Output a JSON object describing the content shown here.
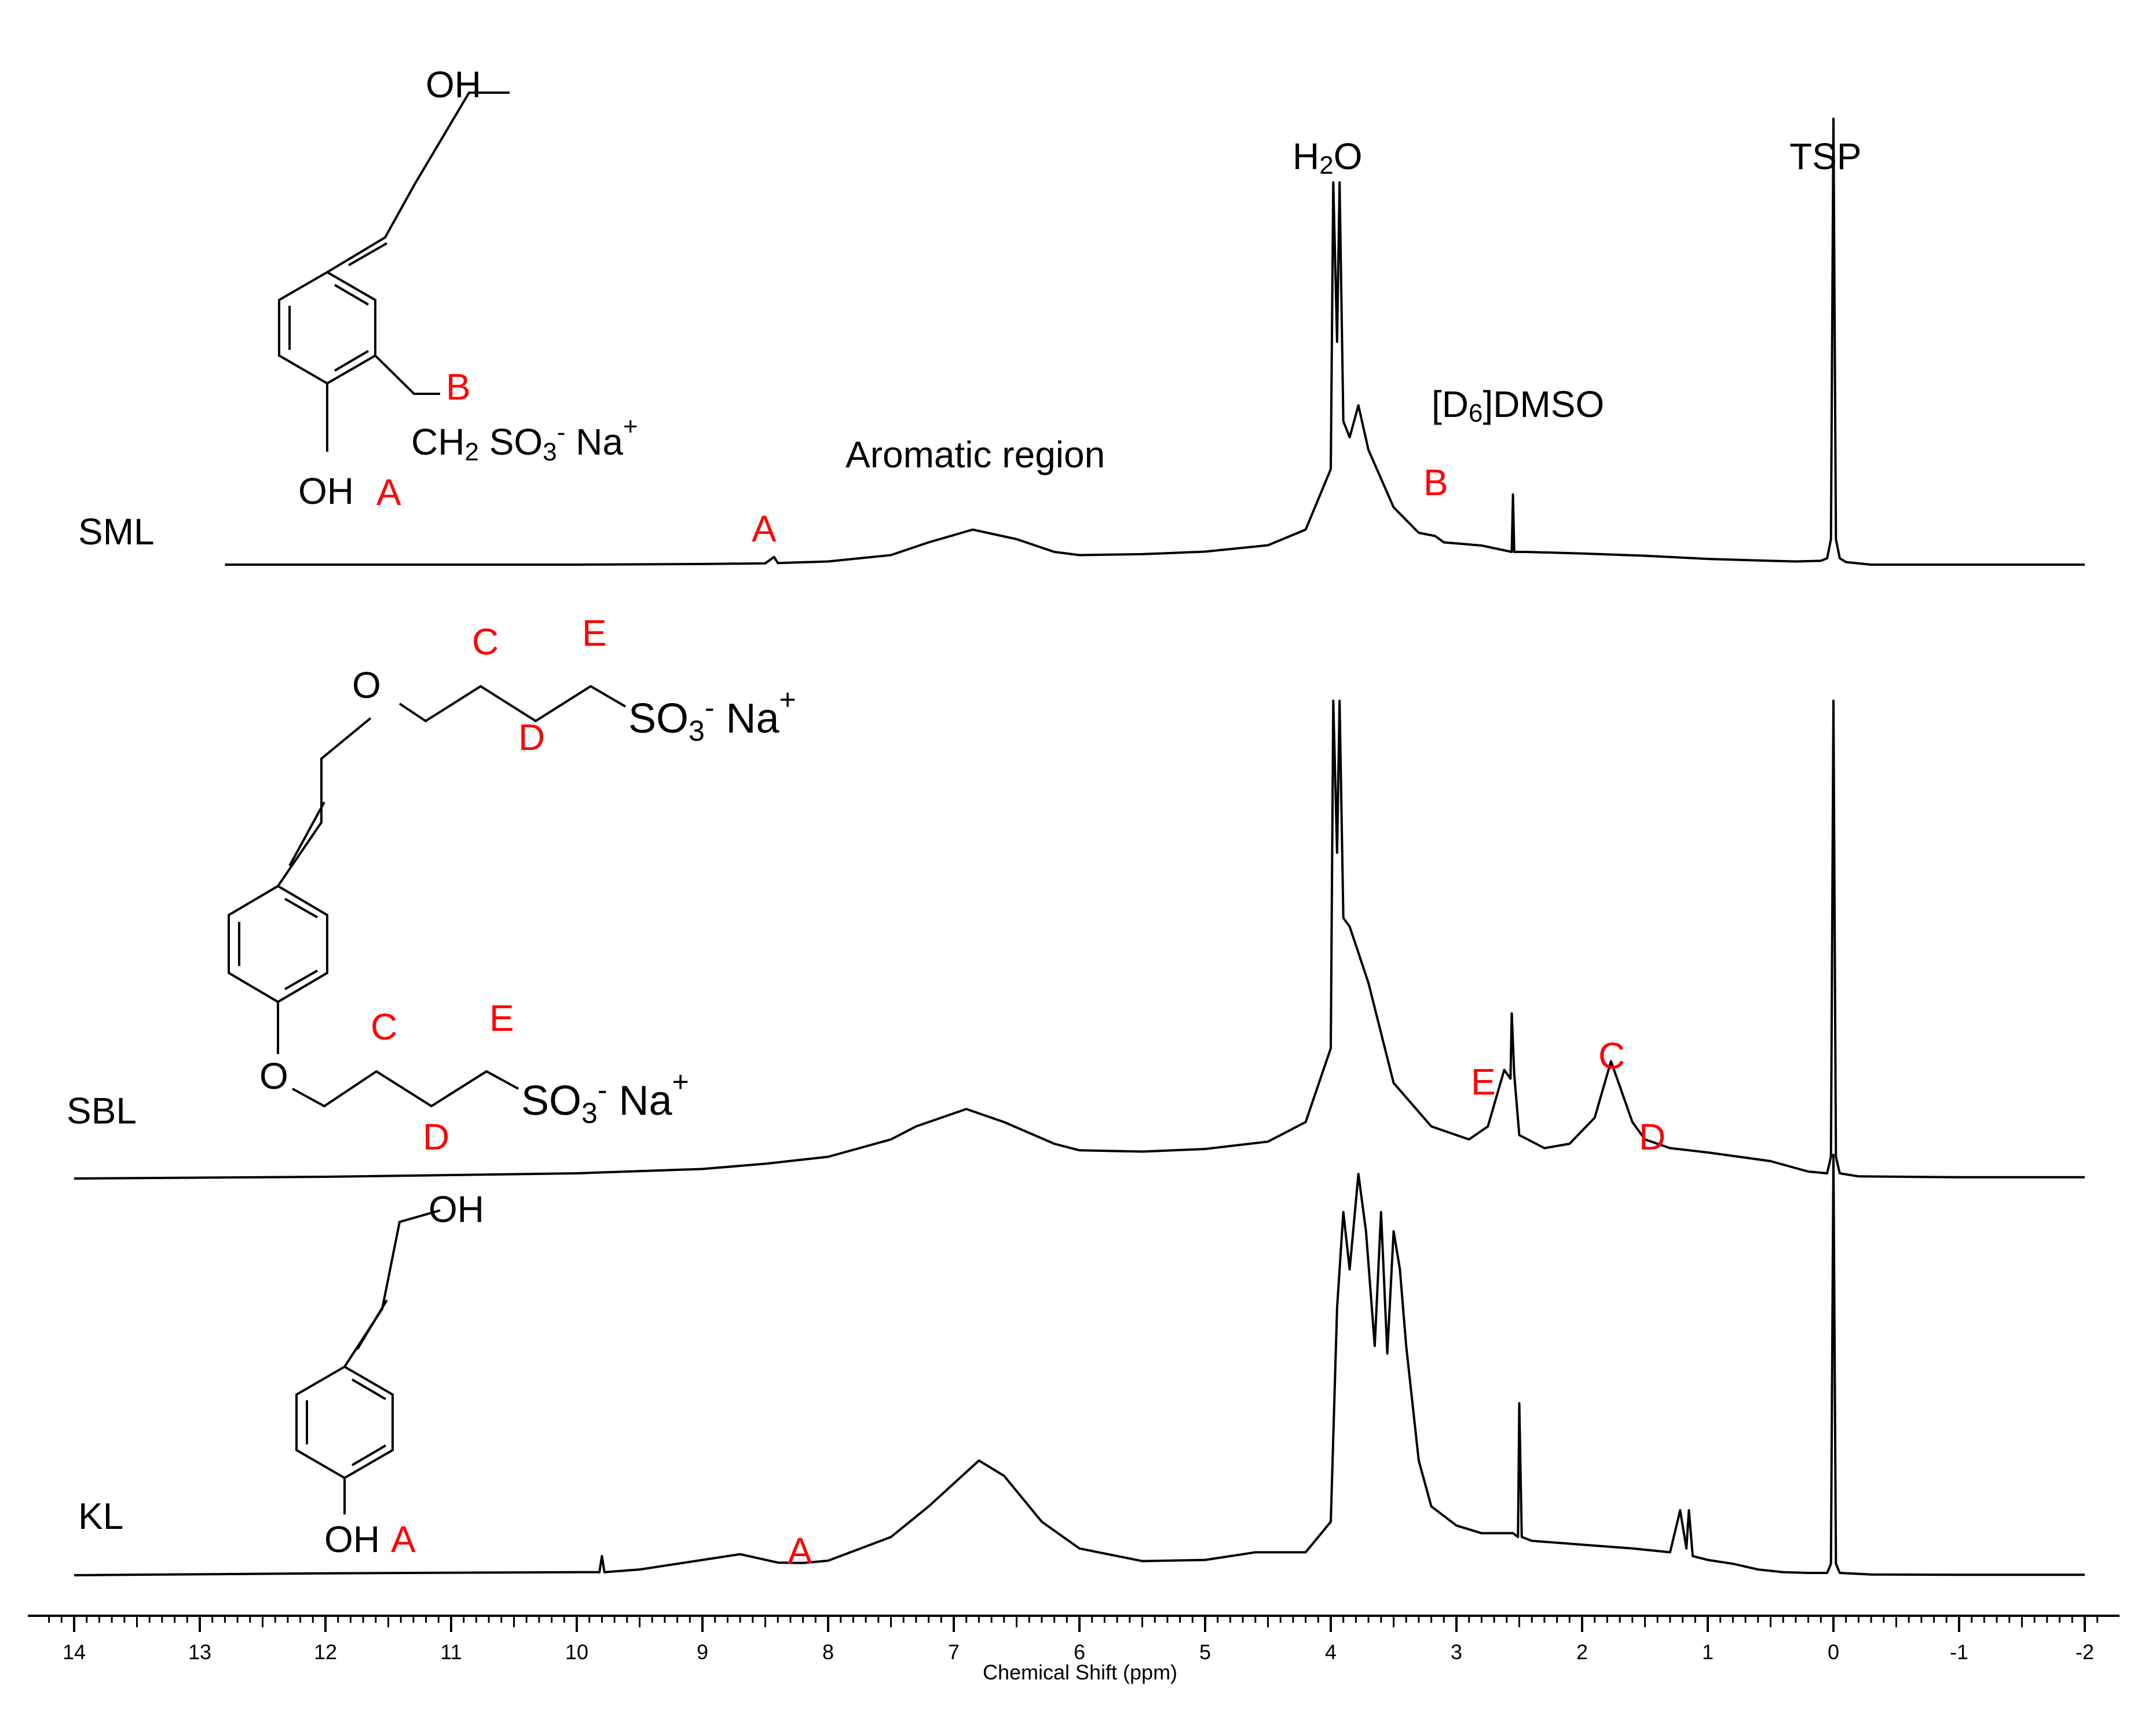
{
  "chart_data": {
    "type": "line",
    "xlabel": "Chemical Shift (ppm)",
    "xlim": [
      14,
      -2
    ],
    "x_ticks": [
      "14",
      "13",
      "12",
      "11",
      "10",
      "9",
      "8",
      "7",
      "6",
      "5",
      "4",
      "3",
      "2",
      "1",
      "0",
      "-1",
      "-2"
    ],
    "series": [
      {
        "name": "SML",
        "x": [
          12.8,
          10,
          9,
          8.5,
          8.43,
          8.4,
          8,
          7.5,
          7.2,
          6.85,
          6.5,
          6.2,
          6,
          5.5,
          5,
          4.5,
          4.2,
          4.0,
          3.98,
          3.95,
          3.93,
          3.9,
          3.85,
          3.78,
          3.7,
          3.5,
          3.3,
          3.17,
          3.1,
          2.8,
          2.56,
          2.55,
          2.54,
          2.45,
          2.0,
          1.5,
          1.0,
          0.5,
          0.3,
          0.1,
          0.05,
          0.02,
          0.0,
          -0.02,
          -0.05,
          -0.1,
          -0.3,
          -1.0,
          -2.0
        ],
        "y": [
          0,
          0,
          0.2,
          0.4,
          2.4,
          0.5,
          1,
          3,
          7,
          11,
          8,
          4,
          3,
          3.3,
          4.1,
          6.1,
          11,
          30,
          120,
          70,
          120,
          45,
          40,
          50,
          36,
          18,
          10,
          9,
          7,
          6,
          4,
          22,
          4,
          4,
          3.5,
          2.8,
          1.8,
          1.2,
          1,
          1.2,
          2,
          8,
          140,
          8,
          2,
          0.8,
          0,
          0,
          0
        ]
      },
      {
        "name": "SBL",
        "x": [
          14,
          12,
          10,
          9,
          8.5,
          8,
          7.5,
          7.3,
          6.9,
          6.6,
          6.2,
          6,
          5.5,
          5,
          4.5,
          4.2,
          4.0,
          3.98,
          3.95,
          3.93,
          3.9,
          3.85,
          3.78,
          3.7,
          3.5,
          3.2,
          2.9,
          2.75,
          2.62,
          2.57,
          2.56,
          2.54,
          2.5,
          2.3,
          2.1,
          1.9,
          1.77,
          1.6,
          1.5,
          1.3,
          1.0,
          0.5,
          0.2,
          0.05,
          0.02,
          0.0,
          -0.02,
          -0.05,
          -0.2,
          -1.0,
          -2.0
        ],
        "y": [
          0,
          0.4,
          1.2,
          2.2,
          3.4,
          5,
          9,
          12,
          16,
          13,
          8,
          6.5,
          6.2,
          6.8,
          8.5,
          13,
          30,
          110,
          75,
          110,
          60,
          58,
          52,
          45,
          22,
          12,
          9,
          12,
          25,
          23,
          38,
          24,
          10,
          7,
          8,
          14,
          27,
          13,
          9,
          7,
          6,
          4,
          1.6,
          1.2,
          5,
          110,
          5,
          1.2,
          0.5,
          0.3,
          0.3
        ]
      },
      {
        "name": "KL",
        "x": [
          14,
          12,
          10,
          9.82,
          9.8,
          9.78,
          9.5,
          9,
          8.7,
          8.4,
          8.2,
          8,
          7.5,
          7.2,
          7.0,
          6.9,
          6.8,
          6.75,
          6.6,
          6.3,
          6,
          5.5,
          5,
          4.6,
          4.2,
          4.0,
          3.95,
          3.9,
          3.85,
          3.78,
          3.72,
          3.65,
          3.6,
          3.55,
          3.5,
          3.45,
          3.4,
          3.3,
          3.2,
          3.0,
          2.8,
          2.55,
          2.51,
          2.5,
          2.48,
          2.4,
          2.0,
          1.6,
          1.3,
          1.22,
          1.17,
          1.15,
          1.12,
          1.0,
          0.8,
          0.6,
          0.4,
          0.2,
          0.05,
          0.02,
          0.0,
          -0.02,
          -0.05,
          -0.3,
          -1.0,
          -2.0
        ],
        "y": [
          0,
          0.5,
          0.8,
          0.8,
          5,
          0.8,
          1.5,
          4,
          5.5,
          3.3,
          3.2,
          3.8,
          10,
          18,
          24,
          27,
          30,
          29,
          26,
          14,
          7,
          3.7,
          4,
          6,
          6,
          14,
          70,
          95,
          80,
          105,
          90,
          60,
          95,
          58,
          90,
          80,
          60,
          30,
          18,
          13,
          11,
          11,
          10,
          45,
          10,
          9,
          8,
          7,
          6,
          17,
          7,
          17,
          5,
          4,
          3,
          1.5,
          0.8,
          0.6,
          0.6,
          3,
          110,
          3,
          0.6,
          0.2,
          0.1,
          0.1
        ]
      }
    ],
    "annotations": {
      "sml_label": "SML",
      "sbl_label": "SBL",
      "kl_label": "KL",
      "aromatic": "Aromatic region",
      "water_main": "H",
      "water_sub": "2",
      "water_end": "O",
      "dmso_open": "[D",
      "dmso_sub": "6",
      "dmso_end": "]DMSO",
      "tsp": "TSP",
      "peak_a": "A",
      "peak_b": "B",
      "peak_c": "C",
      "peak_d": "D",
      "peak_e": "E"
    },
    "structures": {
      "oh": "OH",
      "o": "O",
      "ch2": "CH",
      "so3": "SO",
      "sub2": "2",
      "sub3": "3",
      "minus": "-",
      "plus": "+",
      "na": " Na"
    }
  }
}
